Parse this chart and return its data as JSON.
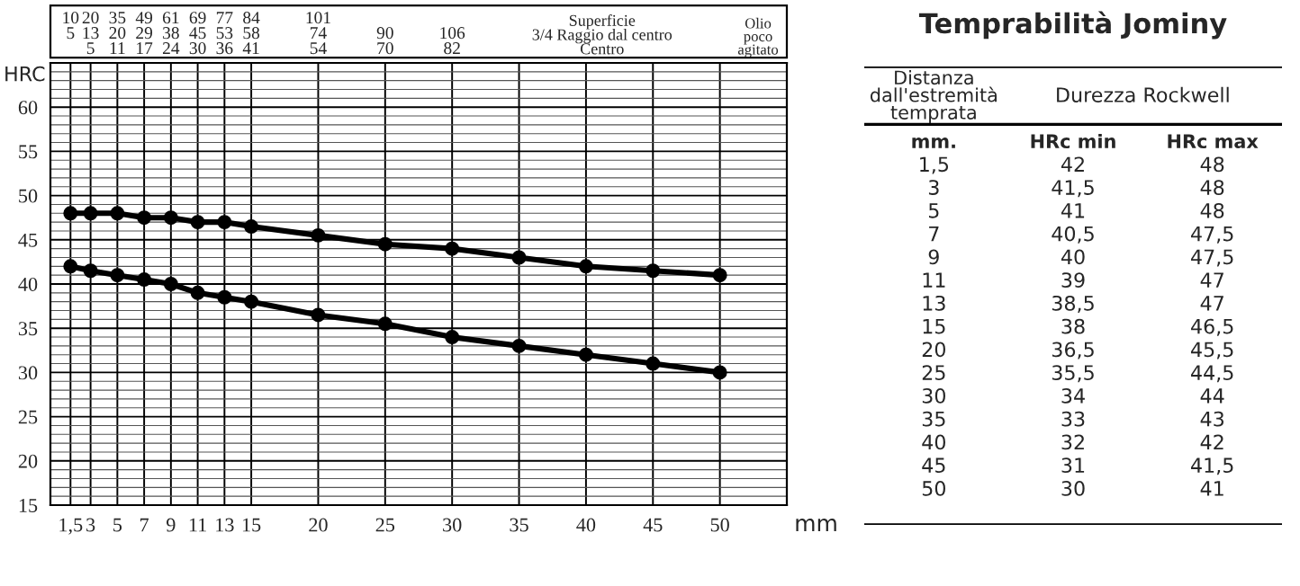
{
  "chart_data": [
    {
      "type": "line",
      "xlabel": "mm",
      "ylabel": "HRC",
      "xlim": [
        0,
        55
      ],
      "ylim": [
        15,
        65
      ],
      "xticks": [
        {
          "value": 1.5,
          "label": "1,5"
        },
        3,
        5,
        7,
        9,
        11,
        13,
        15,
        20,
        25,
        30,
        35,
        40,
        45,
        50
      ],
      "yticks": [
        15,
        20,
        25,
        30,
        35,
        40,
        45,
        50,
        55,
        60
      ],
      "annotations": [
        "10\n5\n ",
        "20\n13\n5",
        "35\n20\n11",
        "49\n29\n17",
        "61\n38\n24",
        "69\n45\n30",
        "77\n53\n36",
        "84\n58\n41",
        "101\n74\n54",
        " \n90\n70",
        " \n106\n82",
        "Superficie\n3/4 Raggio dal centro\nCentro",
        "Olio\npoco\nagitato"
      ],
      "x": [
        1.5,
        3,
        5,
        7,
        9,
        11,
        13,
        15,
        20,
        25,
        30,
        35,
        40,
        45,
        50
      ],
      "grid": true,
      "marker": "circle",
      "line_style": "solid",
      "legend": false,
      "series": [
        {
          "color": "#000000",
          "values": [
            42,
            41.5,
            41,
            40.5,
            40,
            39,
            38.5,
            38,
            36.5,
            35.5,
            34,
            33,
            32,
            31,
            30
          ]
        },
        {
          "color": "#000000",
          "values": [
            48,
            48,
            48,
            47.5,
            47.5,
            47,
            47,
            46.5,
            45.5,
            44.5,
            44,
            43,
            42,
            41.5,
            41
          ]
        }
      ]
    },
    {
      "type": "other",
      "title": "Temprabilità Jominy",
      "annotations": [
        "Distanza\ndall'estremità\ntemprata",
        "Durezza Rockwell",
        "mm.",
        "HRc min",
        "HRc max",
        "1,5",
        "42",
        "48",
        "3",
        "41,5",
        "48",
        "5",
        "41",
        "48",
        "7",
        "40,5",
        "47,5",
        "9",
        "40",
        "47,5",
        "11",
        "39",
        "47",
        "13",
        "38,5",
        "47",
        "15",
        "38",
        "46,5",
        "20",
        "36,5",
        "45,5",
        "25",
        "35,5",
        "44,5",
        "30",
        "34",
        "44",
        "35",
        "33",
        "43",
        "40",
        "32",
        "42",
        "45",
        "31",
        "41,5",
        "50",
        "30",
        "41"
      ]
    }
  ]
}
